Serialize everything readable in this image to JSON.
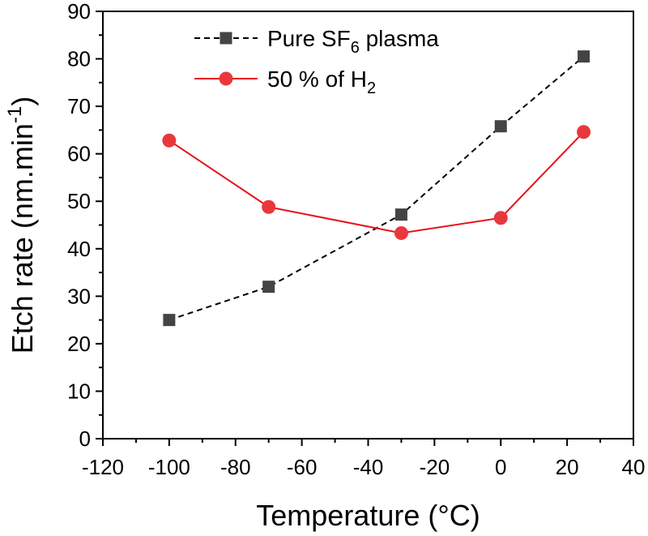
{
  "chart_data": {
    "type": "line",
    "xlabel": "Temperature (°C)",
    "ylabel": "Etch rate (nm.min",
    "ylabel_sup": "-1",
    "ylabel_close": ")",
    "xlim": [
      -120,
      40
    ],
    "ylim": [
      0,
      90
    ],
    "xticks": [
      -120,
      -100,
      -80,
      -60,
      -40,
      -20,
      0,
      20,
      40
    ],
    "yticks": [
      0,
      10,
      20,
      30,
      40,
      50,
      60,
      70,
      80,
      90
    ],
    "grid": false,
    "legend_position": "top-center",
    "series": [
      {
        "name": "Pure SF",
        "name_sub": "6",
        "name_tail": " plasma",
        "marker": "square",
        "line_style": "dashed",
        "color": "#444444",
        "line_color": "#000000",
        "x": [
          -100,
          -70,
          -30,
          0,
          25
        ],
        "y": [
          25,
          32,
          47.2,
          65.8,
          80.5
        ]
      },
      {
        "name": "50 % of H",
        "name_sub": "2",
        "name_tail": "",
        "marker": "circle",
        "line_style": "solid",
        "color": "#e8383d",
        "line_color": "#e8101a",
        "x": [
          -100,
          -70,
          -30,
          0,
          25
        ],
        "y": [
          62.8,
          48.8,
          43.3,
          46.5,
          64.6
        ]
      }
    ]
  }
}
